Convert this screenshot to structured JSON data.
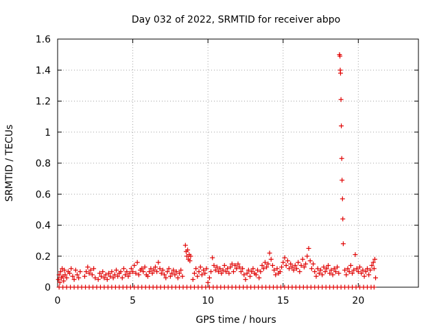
{
  "chart_data": {
    "type": "scatter",
    "title": "Day 032 of 2022, SRMTID for receiver abpo",
    "xlabel": "GPS time / hours",
    "ylabel": "SRMTID / TECUs",
    "xlim": [
      0,
      24
    ],
    "ylim": [
      0,
      1.6
    ],
    "xticks": [
      0,
      5,
      10,
      15,
      20
    ],
    "yticks": [
      0,
      0.2,
      0.4,
      0.6,
      0.8,
      1,
      1.2,
      1.4,
      1.6
    ],
    "ytick_labels": [
      "0",
      "0.2",
      "0.4",
      "0.6",
      "0.8",
      "1",
      "1.2",
      "1.4",
      "1.6"
    ],
    "grid": true,
    "marker": "+",
    "color": "#e00000",
    "series": [
      {
        "name": "SRMTID",
        "points": [
          [
            0.05,
            0.05
          ],
          [
            0.1,
            0.08
          ],
          [
            0.15,
            0.03
          ],
          [
            0.2,
            0.1
          ],
          [
            0.25,
            0.06
          ],
          [
            0.3,
            0.12
          ],
          [
            0.35,
            0.07
          ],
          [
            0.4,
            0.04
          ],
          [
            0.45,
            0.11
          ],
          [
            0.5,
            0.08
          ],
          [
            0.6,
            0.06
          ],
          [
            0.7,
            0.1
          ],
          [
            0.8,
            0.09
          ],
          [
            0.9,
            0.12
          ],
          [
            1.0,
            0.07
          ],
          [
            1.1,
            0.05
          ],
          [
            1.2,
            0.11
          ],
          [
            1.3,
            0.08
          ],
          [
            1.4,
            0.06
          ],
          [
            1.5,
            0.1
          ],
          [
            1.8,
            0.07
          ],
          [
            1.9,
            0.1
          ],
          [
            2.0,
            0.13
          ],
          [
            2.1,
            0.09
          ],
          [
            2.2,
            0.11
          ],
          [
            2.3,
            0.08
          ],
          [
            2.4,
            0.12
          ],
          [
            2.5,
            0.06
          ],
          [
            2.7,
            0.05
          ],
          [
            2.8,
            0.09
          ],
          [
            2.9,
            0.07
          ],
          [
            3.0,
            0.1
          ],
          [
            3.1,
            0.06
          ],
          [
            3.2,
            0.08
          ],
          [
            3.3,
            0.05
          ],
          [
            3.4,
            0.09
          ],
          [
            3.5,
            0.07
          ],
          [
            3.6,
            0.1
          ],
          [
            3.7,
            0.06
          ],
          [
            3.8,
            0.08
          ],
          [
            3.9,
            0.11
          ],
          [
            4.0,
            0.07
          ],
          [
            4.1,
            0.09
          ],
          [
            4.2,
            0.1
          ],
          [
            4.3,
            0.06
          ],
          [
            4.4,
            0.12
          ],
          [
            4.5,
            0.08
          ],
          [
            4.6,
            0.1
          ],
          [
            4.7,
            0.07
          ],
          [
            4.8,
            0.09
          ],
          [
            4.9,
            0.12
          ],
          [
            5.0,
            0.1
          ],
          [
            5.1,
            0.14
          ],
          [
            5.2,
            0.09
          ],
          [
            5.3,
            0.16
          ],
          [
            5.4,
            0.08
          ],
          [
            5.5,
            0.11
          ],
          [
            5.6,
            0.12
          ],
          [
            5.7,
            0.1
          ],
          [
            5.8,
            0.13
          ],
          [
            5.9,
            0.08
          ],
          [
            6.0,
            0.07
          ],
          [
            6.1,
            0.1
          ],
          [
            6.2,
            0.12
          ],
          [
            6.3,
            0.09
          ],
          [
            6.4,
            0.11
          ],
          [
            6.5,
            0.13
          ],
          [
            6.6,
            0.1
          ],
          [
            6.7,
            0.16
          ],
          [
            6.8,
            0.12
          ],
          [
            6.9,
            0.09
          ],
          [
            7.0,
            0.11
          ],
          [
            7.1,
            0.08
          ],
          [
            7.2,
            0.06
          ],
          [
            7.3,
            0.1
          ],
          [
            7.4,
            0.12
          ],
          [
            7.5,
            0.07
          ],
          [
            7.6,
            0.09
          ],
          [
            7.7,
            0.11
          ],
          [
            7.8,
            0.08
          ],
          [
            7.9,
            0.1
          ],
          [
            8.0,
            0.06
          ],
          [
            8.1,
            0.09
          ],
          [
            8.2,
            0.11
          ],
          [
            8.3,
            0.07
          ],
          [
            8.5,
            0.27
          ],
          [
            8.55,
            0.23
          ],
          [
            8.6,
            0.2
          ],
          [
            8.65,
            0.24
          ],
          [
            8.7,
            0.18
          ],
          [
            8.75,
            0.21
          ],
          [
            8.8,
            0.17
          ],
          [
            8.85,
            0.2
          ],
          [
            9.0,
            0.05
          ],
          [
            9.1,
            0.09
          ],
          [
            9.2,
            0.12
          ],
          [
            9.3,
            0.07
          ],
          [
            9.4,
            0.1
          ],
          [
            9.5,
            0.13
          ],
          [
            9.6,
            0.08
          ],
          [
            9.7,
            0.11
          ],
          [
            9.8,
            0.09
          ],
          [
            9.9,
            0.12
          ],
          [
            10.0,
            0.03
          ],
          [
            10.1,
            0.06
          ],
          [
            10.2,
            0.1
          ],
          [
            10.3,
            0.19
          ],
          [
            10.4,
            0.14
          ],
          [
            10.5,
            0.11
          ],
          [
            10.6,
            0.13
          ],
          [
            10.7,
            0.1
          ],
          [
            10.8,
            0.12
          ],
          [
            10.9,
            0.09
          ],
          [
            11.0,
            0.11
          ],
          [
            11.1,
            0.14
          ],
          [
            11.2,
            0.1
          ],
          [
            11.3,
            0.12
          ],
          [
            11.4,
            0.09
          ],
          [
            11.5,
            0.13
          ],
          [
            11.6,
            0.15
          ],
          [
            11.7,
            0.1
          ],
          [
            11.8,
            0.14
          ],
          [
            11.9,
            0.12
          ],
          [
            12.0,
            0.15
          ],
          [
            12.1,
            0.13
          ],
          [
            12.2,
            0.1
          ],
          [
            12.3,
            0.12
          ],
          [
            12.4,
            0.08
          ],
          [
            12.5,
            0.05
          ],
          [
            12.6,
            0.09
          ],
          [
            12.7,
            0.11
          ],
          [
            12.8,
            0.07
          ],
          [
            12.9,
            0.1
          ],
          [
            13.0,
            0.12
          ],
          [
            13.1,
            0.09
          ],
          [
            13.2,
            0.08
          ],
          [
            13.3,
            0.11
          ],
          [
            13.4,
            0.06
          ],
          [
            13.5,
            0.1
          ],
          [
            13.6,
            0.14
          ],
          [
            13.7,
            0.12
          ],
          [
            13.8,
            0.16
          ],
          [
            13.9,
            0.13
          ],
          [
            14.0,
            0.15
          ],
          [
            14.1,
            0.22
          ],
          [
            14.2,
            0.18
          ],
          [
            14.3,
            0.14
          ],
          [
            14.4,
            0.11
          ],
          [
            14.5,
            0.08
          ],
          [
            14.6,
            0.12
          ],
          [
            14.7,
            0.09
          ],
          [
            14.8,
            0.1
          ],
          [
            14.9,
            0.13
          ],
          [
            15.0,
            0.16
          ],
          [
            15.1,
            0.19
          ],
          [
            15.2,
            0.14
          ],
          [
            15.3,
            0.17
          ],
          [
            15.4,
            0.12
          ],
          [
            15.5,
            0.15
          ],
          [
            15.6,
            0.13
          ],
          [
            15.7,
            0.11
          ],
          [
            15.8,
            0.14
          ],
          [
            15.9,
            0.12
          ],
          [
            16.0,
            0.16
          ],
          [
            16.1,
            0.1
          ],
          [
            16.2,
            0.14
          ],
          [
            16.3,
            0.18
          ],
          [
            16.4,
            0.13
          ],
          [
            16.5,
            0.15
          ],
          [
            16.6,
            0.2
          ],
          [
            16.7,
            0.25
          ],
          [
            16.8,
            0.17
          ],
          [
            16.9,
            0.12
          ],
          [
            17.0,
            0.15
          ],
          [
            17.1,
            0.1
          ],
          [
            17.2,
            0.07
          ],
          [
            17.3,
            0.12
          ],
          [
            17.4,
            0.09
          ],
          [
            17.5,
            0.11
          ],
          [
            17.6,
            0.08
          ],
          [
            17.7,
            0.13
          ],
          [
            17.8,
            0.1
          ],
          [
            17.9,
            0.12
          ],
          [
            18.0,
            0.14
          ],
          [
            18.1,
            0.09
          ],
          [
            18.2,
            0.11
          ],
          [
            18.3,
            0.08
          ],
          [
            18.4,
            0.12
          ],
          [
            18.5,
            0.1
          ],
          [
            18.6,
            0.13
          ],
          [
            18.7,
            0.09
          ],
          [
            18.75,
            1.5
          ],
          [
            18.78,
            1.49
          ],
          [
            18.8,
            1.4
          ],
          [
            18.82,
            1.38
          ],
          [
            18.85,
            1.21
          ],
          [
            18.87,
            1.04
          ],
          [
            18.9,
            0.83
          ],
          [
            18.92,
            0.69
          ],
          [
            18.95,
            0.57
          ],
          [
            18.97,
            0.44
          ],
          [
            19.0,
            0.28
          ],
          [
            19.1,
            0.11
          ],
          [
            19.2,
            0.08
          ],
          [
            19.3,
            0.12
          ],
          [
            19.4,
            0.1
          ],
          [
            19.5,
            0.14
          ],
          [
            19.6,
            0.09
          ],
          [
            19.7,
            0.11
          ],
          [
            19.8,
            0.21
          ],
          [
            19.9,
            0.12
          ],
          [
            20.0,
            0.1
          ],
          [
            20.1,
            0.13
          ],
          [
            20.2,
            0.09
          ],
          [
            20.3,
            0.11
          ],
          [
            20.4,
            0.07
          ],
          [
            20.5,
            0.1
          ],
          [
            20.6,
            0.12
          ],
          [
            20.7,
            0.08
          ],
          [
            20.8,
            0.11
          ],
          [
            20.9,
            0.14
          ],
          [
            21.0,
            0.16
          ],
          [
            21.05,
            0.12
          ],
          [
            21.1,
            0.18
          ],
          [
            21.15,
            0.06
          ]
        ],
        "zero_points_x": [
          0.1,
          0.35,
          0.6,
          0.85,
          1.1,
          1.35,
          1.6,
          1.85,
          2.1,
          2.35,
          2.6,
          2.85,
          3.1,
          3.35,
          3.6,
          3.85,
          4.1,
          4.35,
          4.6,
          4.85,
          5.1,
          5.35,
          5.6,
          5.85,
          6.1,
          6.35,
          6.6,
          6.85,
          7.1,
          7.35,
          7.6,
          7.85,
          8.1,
          8.35,
          8.6,
          8.85,
          9.1,
          9.35,
          9.6,
          9.85,
          10.1,
          10.35,
          10.6,
          10.85,
          11.1,
          11.35,
          11.6,
          11.85,
          12.1,
          12.35,
          12.6,
          12.85,
          13.1,
          13.35,
          13.6,
          13.85,
          14.1,
          14.35,
          14.6,
          14.85,
          15.1,
          15.35,
          15.6,
          15.85,
          16.1,
          16.35,
          16.6,
          16.85,
          17.1,
          17.35,
          17.6,
          17.85,
          18.1,
          18.35,
          18.6,
          18.85,
          19.1,
          19.35,
          19.6,
          19.85,
          20.1,
          20.35,
          20.6,
          20.85,
          21.05
        ]
      }
    ]
  }
}
